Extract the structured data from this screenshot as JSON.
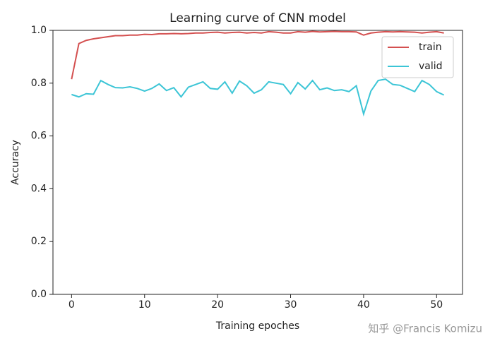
{
  "chart_data": {
    "type": "line",
    "title": "Learning curve of CNN model",
    "x_label": "Training epoches",
    "y_label": "Accuracy",
    "x": [
      0,
      1,
      2,
      3,
      4,
      5,
      6,
      7,
      8,
      9,
      10,
      11,
      12,
      13,
      14,
      15,
      16,
      17,
      18,
      19,
      20,
      21,
      22,
      23,
      24,
      25,
      26,
      27,
      28,
      29,
      30,
      31,
      32,
      33,
      34,
      35,
      36,
      37,
      38,
      39,
      40,
      41,
      42,
      43,
      44,
      45,
      46,
      47,
      48,
      49,
      50,
      51
    ],
    "series": [
      {
        "name": "train",
        "color": "#d45050",
        "values": [
          0.815,
          0.95,
          0.962,
          0.968,
          0.972,
          0.976,
          0.98,
          0.98,
          0.982,
          0.982,
          0.985,
          0.984,
          0.987,
          0.987,
          0.988,
          0.987,
          0.988,
          0.99,
          0.99,
          0.992,
          0.993,
          0.99,
          0.992,
          0.993,
          0.99,
          0.992,
          0.99,
          0.995,
          0.993,
          0.99,
          0.99,
          0.995,
          0.993,
          0.996,
          0.994,
          0.995,
          0.996,
          0.995,
          0.995,
          0.994,
          0.982,
          0.99,
          0.993,
          0.995,
          0.994,
          0.995,
          0.994,
          0.993,
          0.99,
          0.993,
          0.995,
          0.99
        ]
      },
      {
        "name": "valid",
        "color": "#3cc5d6",
        "values": [
          0.757,
          0.748,
          0.76,
          0.758,
          0.81,
          0.795,
          0.783,
          0.782,
          0.786,
          0.78,
          0.77,
          0.78,
          0.797,
          0.772,
          0.783,
          0.748,
          0.785,
          0.795,
          0.805,
          0.78,
          0.777,
          0.805,
          0.762,
          0.808,
          0.79,
          0.762,
          0.775,
          0.805,
          0.8,
          0.795,
          0.76,
          0.802,
          0.778,
          0.81,
          0.775,
          0.782,
          0.772,
          0.775,
          0.768,
          0.79,
          0.683,
          0.77,
          0.81,
          0.815,
          0.795,
          0.792,
          0.78,
          0.768,
          0.81,
          0.795,
          0.768,
          0.755
        ]
      }
    ],
    "xlim": [
      -2.55,
      53.55
    ],
    "ylim": [
      0,
      1
    ],
    "xticks": [
      0,
      10,
      20,
      30,
      40,
      50
    ],
    "yticks": [
      {
        "value": 0,
        "label": "0.0"
      },
      {
        "value": 0.2,
        "label": "0.2"
      },
      {
        "value": 0.4,
        "label": "0.4"
      },
      {
        "value": 0.6,
        "label": "0.6"
      },
      {
        "value": 0.8,
        "label": "0.8"
      },
      {
        "value": 1,
        "label": "1.0"
      }
    ],
    "legend": "upper right",
    "grid": false
  },
  "watermark": "知乎 @Francis Komizu"
}
